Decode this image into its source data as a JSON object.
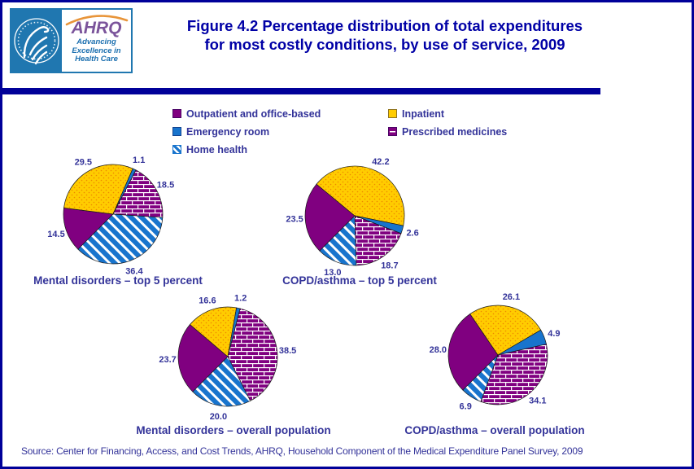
{
  "page": {
    "title_line1": "Figure 4.2 Percentage distribution of total expenditures",
    "title_line2": "for most costly conditions, by use of service, 2009",
    "source": "Source: Center for Financing, Access, and Cost Trends, AHRQ, Household Component of the Medical Expenditure Panel Survey, 2009"
  },
  "logo": {
    "ahrq": "AHRQ",
    "seal_text": "Department of Health & Human Services - USA",
    "tagline": [
      "Advancing",
      "Excellence in",
      "Health Care"
    ]
  },
  "legend": {
    "position": "top-center",
    "items": [
      {
        "label": "Outpatient and office-based",
        "pattern": "solid-purple"
      },
      {
        "label": "Inpatient",
        "pattern": "dots-yellow"
      },
      {
        "label": "Emergency room",
        "pattern": "solid-blue"
      },
      {
        "label": "Prescribed medicines",
        "pattern": "brick-purple"
      },
      {
        "label": "Home health",
        "pattern": "stripes-blue"
      }
    ]
  },
  "chart_data": [
    {
      "type": "pie",
      "title": "Mental disorders – top 5 percent",
      "units": "percent",
      "start_angle_deg": 225,
      "direction": "clockwise",
      "slices": [
        {
          "name": "Outpatient and office-based",
          "value": 14.5,
          "label": "14.5",
          "pattern": "solid-purple"
        },
        {
          "name": "Inpatient",
          "value": 29.5,
          "label": "29.5",
          "pattern": "dots-yellow"
        },
        {
          "name": "Emergency room",
          "value": 1.1,
          "label": "1.1",
          "pattern": "solid-blue"
        },
        {
          "name": "Prescribed medicines",
          "value": 18.5,
          "label": "18.5",
          "pattern": "brick-purple"
        },
        {
          "name": "Home health",
          "value": 36.4,
          "label": "36.4",
          "pattern": "stripes-blue"
        }
      ]
    },
    {
      "type": "pie",
      "title": "COPD/asthma – top 5 percent",
      "units": "percent",
      "start_angle_deg": 225,
      "direction": "clockwise",
      "slices": [
        {
          "name": "Outpatient and office-based",
          "value": 23.5,
          "label": "23.5",
          "pattern": "solid-purple"
        },
        {
          "name": "Inpatient",
          "value": 42.2,
          "label": "42.2",
          "pattern": "dots-yellow"
        },
        {
          "name": "Emergency room",
          "value": 2.6,
          "label": "2.6",
          "pattern": "solid-blue"
        },
        {
          "name": "Prescribed medicines",
          "value": 18.7,
          "label": "18.7",
          "pattern": "brick-purple"
        },
        {
          "name": "Home health",
          "value": 13.0,
          "label": "13.0",
          "pattern": "stripes-blue"
        }
      ]
    },
    {
      "type": "pie",
      "title": "Mental disorders – overall population",
      "units": "percent",
      "start_angle_deg": 225,
      "direction": "clockwise",
      "slices": [
        {
          "name": "Outpatient and office-based",
          "value": 23.7,
          "label": "23.7",
          "pattern": "solid-purple"
        },
        {
          "name": "Inpatient",
          "value": 16.6,
          "label": "16.6",
          "pattern": "dots-yellow"
        },
        {
          "name": "Emergency room",
          "value": 1.2,
          "label": "1.2",
          "pattern": "solid-blue"
        },
        {
          "name": "Prescribed medicines",
          "value": 38.5,
          "label": "38.5",
          "pattern": "brick-purple"
        },
        {
          "name": "Home health",
          "value": 20.0,
          "label": "20.0",
          "pattern": "stripes-blue"
        }
      ]
    },
    {
      "type": "pie",
      "title": "COPD/asthma – overall population",
      "units": "percent",
      "start_angle_deg": 225,
      "direction": "clockwise",
      "slices": [
        {
          "name": "Outpatient and office-based",
          "value": 28.0,
          "label": "28.0",
          "pattern": "solid-purple"
        },
        {
          "name": "Inpatient",
          "value": 26.1,
          "label": "26.1",
          "pattern": "dots-yellow"
        },
        {
          "name": "Emergency room",
          "value": 4.9,
          "label": "4.9",
          "pattern": "solid-blue"
        },
        {
          "name": "Prescribed medicines",
          "value": 34.1,
          "label": "34.1",
          "pattern": "brick-purple"
        },
        {
          "name": "Home health",
          "value": 6.9,
          "label": "6.9",
          "pattern": "stripes-blue"
        }
      ]
    }
  ],
  "colors": {
    "navy": "#000099",
    "title": "#0000A6",
    "text": "#333399",
    "outpatient": "#800080",
    "inpatient": "#FFCC00",
    "inpatient_dot": "#EE8800",
    "emergency": "#1874CD",
    "logo_blue": "#2077B0",
    "logo_purple": "#7B549B",
    "swoosh": "#E8953A",
    "tagline": "#1B6FAF"
  }
}
